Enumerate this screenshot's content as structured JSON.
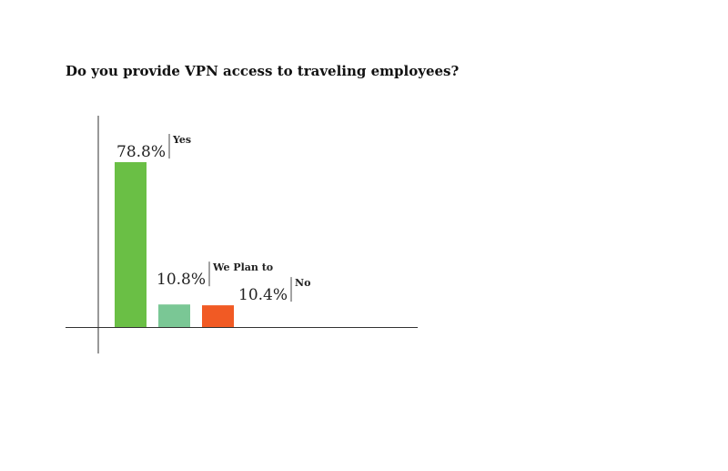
{
  "chart_data": {
    "type": "bar",
    "title": "Do you provide VPN access to traveling employees?",
    "categories": [
      "Yes",
      "We Plan to",
      "No"
    ],
    "values": [
      78.8,
      10.8,
      10.4
    ],
    "value_labels": [
      "78.8%",
      "10.8%",
      "10.4%"
    ],
    "colors": [
      "#6abf45",
      "#7ac795",
      "#f15a24"
    ],
    "ylim": [
      0,
      100
    ],
    "grid": false,
    "legend": "none"
  }
}
